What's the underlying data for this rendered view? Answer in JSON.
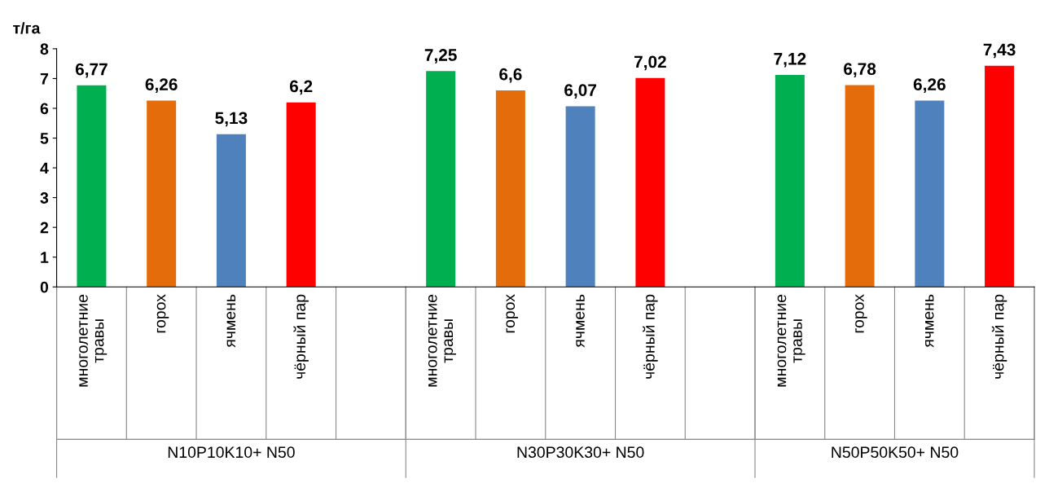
{
  "chart_data": {
    "type": "bar",
    "ylabel": "т/га",
    "categories": [
      "многолетние травы",
      "горох",
      "ячмень",
      "чёрный пар",
      null,
      "многолетние травы",
      "горох",
      "ячмень",
      "чёрный пар",
      null,
      "многолетние травы",
      "горох",
      "ячмень",
      "чёрный пар"
    ],
    "values": [
      6.77,
      6.26,
      5.13,
      6.2,
      null,
      7.25,
      6.6,
      6.07,
      7.02,
      null,
      7.12,
      6.78,
      6.26,
      7.43
    ],
    "colors": [
      "#00b050",
      "#e46c0a",
      "#4f81bd",
      "#ff0000",
      null,
      "#00b050",
      "#e46c0a",
      "#4f81bd",
      "#ff0000",
      null,
      "#00b050",
      "#e46c0a",
      "#4f81bd",
      "#ff0000"
    ],
    "value_labels": [
      "6,77",
      "6,26",
      "5,13",
      "6,2",
      null,
      "7,25",
      "6,6",
      "6,07",
      "7,02",
      null,
      "7,12",
      "6,78",
      "6,26",
      "7,43"
    ],
    "ylim": [
      0,
      8
    ],
    "yticks": [
      0,
      1,
      2,
      3,
      4,
      5,
      6,
      7,
      8
    ],
    "grid": false,
    "annotations": [
      "N10P10K10+ N50",
      "N30P30K30+ N50",
      "N50P50K50+ N50"
    ]
  }
}
